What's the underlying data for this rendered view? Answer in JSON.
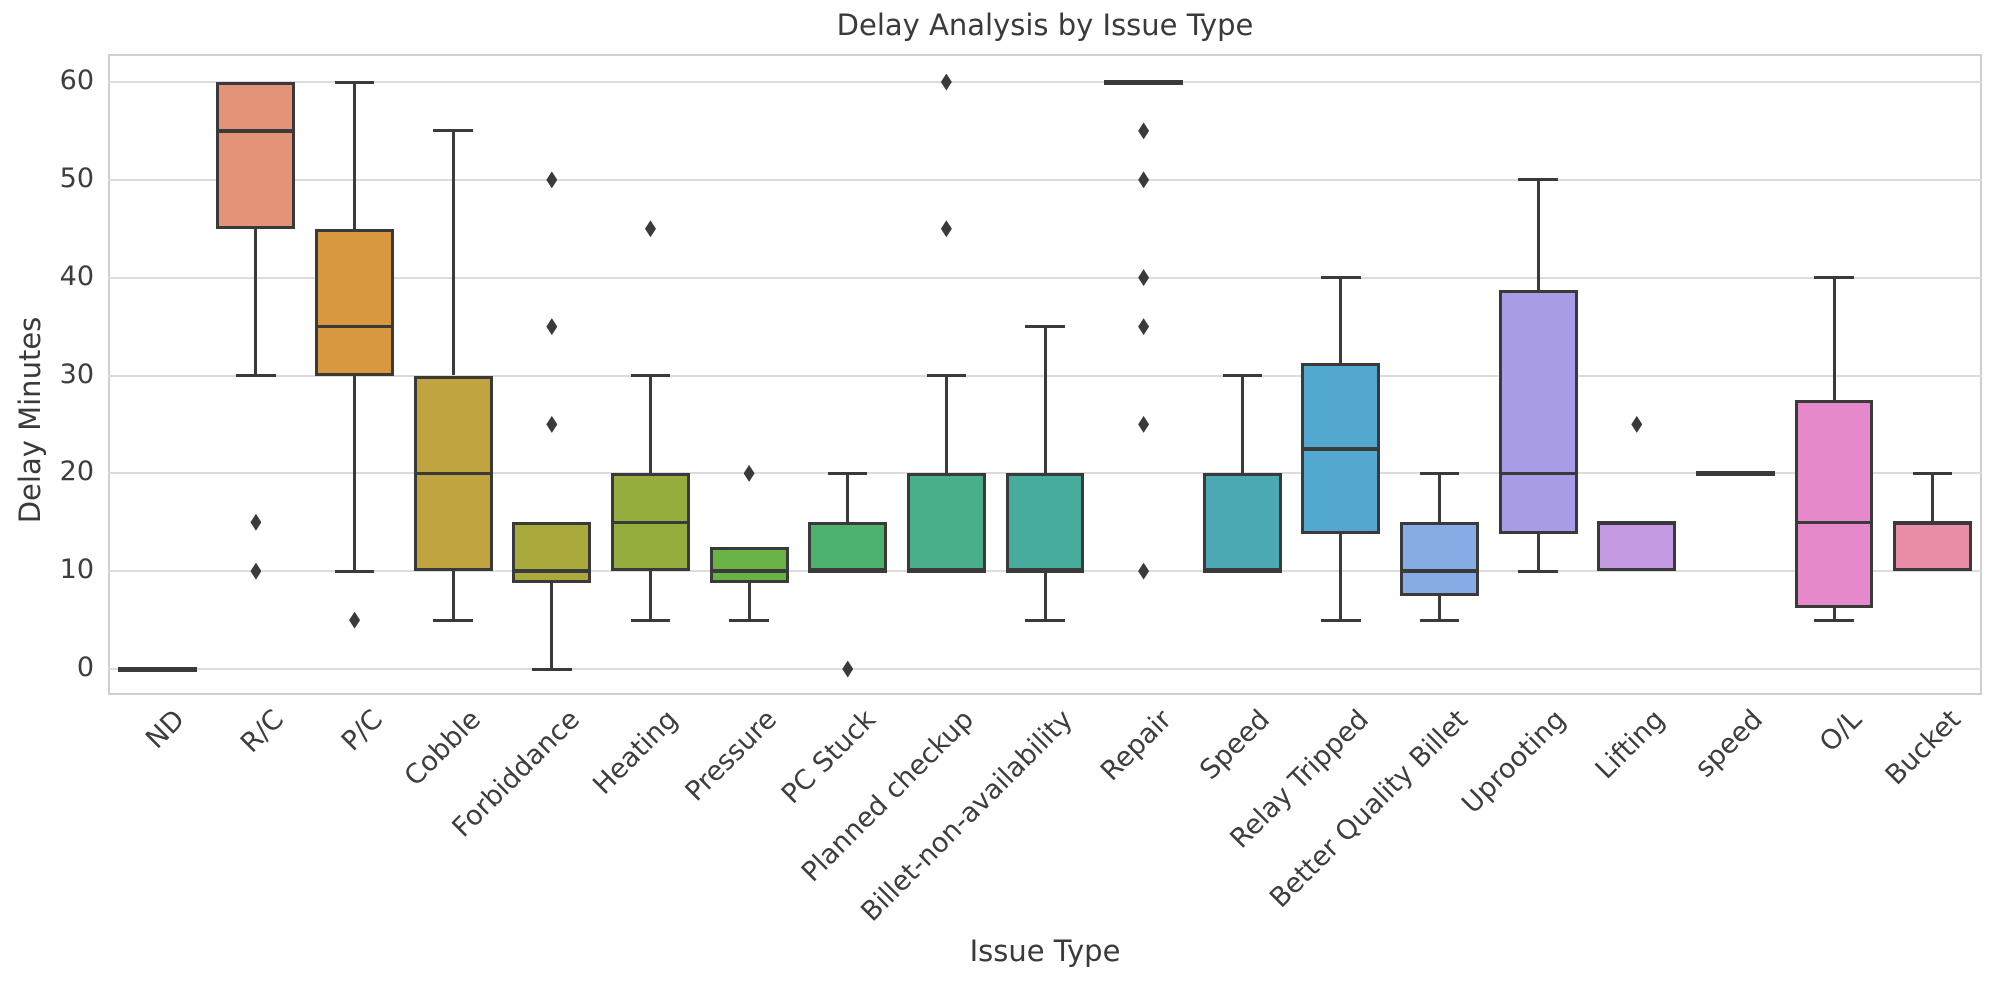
{
  "chart_data": {
    "type": "box",
    "title": "Delay Analysis by Issue Type",
    "xlabel": "Issue Type",
    "ylabel": "Delay Minutes",
    "yticks": [
      0,
      10,
      20,
      30,
      40,
      50,
      60
    ],
    "ylim": [
      -2.7,
      62.9
    ],
    "grid": "horizontal",
    "line_color": "#3a3a3a",
    "grid_color": "#dcdcdc",
    "categories": [
      "ND",
      "R/C",
      "P/C",
      "Cobble",
      "Forbiddance",
      "Heating",
      "Pressure",
      "PC Stuck",
      "Planned checkup",
      "Billet-non-availability",
      "Repair",
      "Speed",
      "Relay Tripped",
      "Better Quality Billet",
      "Uprooting",
      "Lifting",
      "speed",
      "O/L",
      "Bucket"
    ],
    "boxes": [
      {
        "label": "ND",
        "color": null,
        "q1": 0,
        "median": 0,
        "q3": 0,
        "whisker_low": 0,
        "whisker_high": 0,
        "outliers": []
      },
      {
        "label": "R/C",
        "color": "#e39478",
        "q1": 45,
        "median": 55,
        "q3": 60,
        "whisker_low": 30,
        "whisker_high": 60,
        "outliers": [
          15,
          10
        ]
      },
      {
        "label": "P/C",
        "color": "#d89840",
        "q1": 30,
        "median": 35,
        "q3": 45,
        "whisker_low": 10,
        "whisker_high": 60,
        "outliers": [
          5
        ]
      },
      {
        "label": "Cobble",
        "color": "#c0a43f",
        "q1": 10,
        "median": 20,
        "q3": 30,
        "whisker_low": 5,
        "whisker_high": 55,
        "outliers": []
      },
      {
        "label": "Forbiddance",
        "color": "#a9a93c",
        "q1": 8.75,
        "median": 10,
        "q3": 15,
        "whisker_low": 0,
        "whisker_high": 15,
        "outliers": [
          50,
          35,
          25
        ]
      },
      {
        "label": "Heating",
        "color": "#94ad3d",
        "q1": 10,
        "median": 15,
        "q3": 20,
        "whisker_low": 5,
        "whisker_high": 30,
        "outliers": [
          45
        ]
      },
      {
        "label": "Pressure",
        "color": "#69b246",
        "q1": 8.75,
        "median": 10,
        "q3": 12.5,
        "whisker_low": 5,
        "whisker_high": 12.5,
        "outliers": [
          20
        ]
      },
      {
        "label": "PC Stuck",
        "color": "#4db26e",
        "q1": 10,
        "median": 10,
        "q3": 15,
        "whisker_low": 10,
        "whisker_high": 20,
        "outliers": [
          0
        ]
      },
      {
        "label": "Planned checkup",
        "color": "#49ae8a",
        "q1": 10,
        "median": 10,
        "q3": 20,
        "whisker_low": 10,
        "whisker_high": 30,
        "outliers": [
          60,
          45
        ]
      },
      {
        "label": "Billet-non-availability",
        "color": "#47ac9b",
        "q1": 10,
        "median": 10,
        "q3": 20,
        "whisker_low": 5,
        "whisker_high": 35,
        "outliers": []
      },
      {
        "label": "Repair",
        "color": null,
        "q1": 60,
        "median": 60,
        "q3": 60,
        "whisker_low": 60,
        "whisker_high": 60,
        "outliers": [
          55,
          50,
          40,
          35,
          25,
          10
        ]
      },
      {
        "label": "Speed",
        "color": "#4aa9b2",
        "q1": 10,
        "median": 10,
        "q3": 20,
        "whisker_low": 10,
        "whisker_high": 30,
        "outliers": []
      },
      {
        "label": "Relay Tripped",
        "color": "#52a8ce",
        "q1": 13.75,
        "median": 22.5,
        "q3": 31.25,
        "whisker_low": 5,
        "whisker_high": 40,
        "outliers": []
      },
      {
        "label": "Better Quality Billet",
        "color": "#87abe4",
        "q1": 7.5,
        "median": 10,
        "q3": 15,
        "whisker_low": 5,
        "whisker_high": 20,
        "outliers": []
      },
      {
        "label": "Uprooting",
        "color": "#a99ce6",
        "q1": 13.75,
        "median": 20,
        "q3": 38.75,
        "whisker_low": 10,
        "whisker_high": 50,
        "outliers": []
      },
      {
        "label": "Lifting",
        "color": "#c49be2",
        "q1": 10,
        "median": 15,
        "q3": 15,
        "whisker_low": 10,
        "whisker_high": 15,
        "outliers": [
          25
        ]
      },
      {
        "label": "speed",
        "color": null,
        "q1": 20,
        "median": 20,
        "q3": 20,
        "whisker_low": 20,
        "whisker_high": 20,
        "outliers": []
      },
      {
        "label": "O/L",
        "color": "#e689cb",
        "q1": 6.25,
        "median": 15,
        "q3": 27.5,
        "whisker_low": 5,
        "whisker_high": 40,
        "outliers": []
      },
      {
        "label": "Bucket",
        "color": "#e98ca6",
        "q1": 10,
        "median": 15,
        "q3": 15,
        "whisker_low": 10,
        "whisker_high": 20,
        "outliers": []
      }
    ]
  }
}
